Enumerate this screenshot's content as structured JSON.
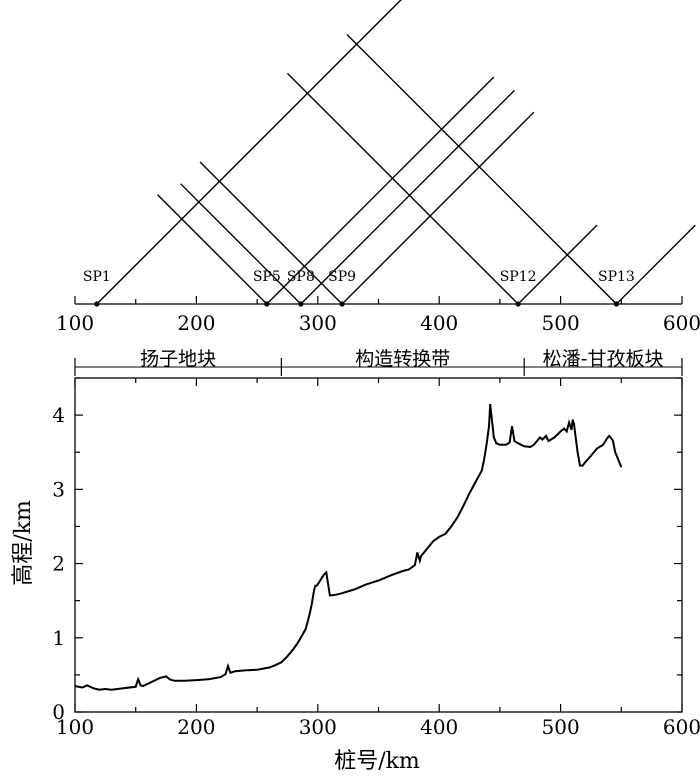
{
  "chart_data": [
    {
      "type": "line",
      "title": "",
      "xlabel": "",
      "ylabel": "",
      "xlim": [
        100,
        600
      ],
      "x_ticks": [
        "100",
        "200",
        "300",
        "400",
        "500",
        "600"
      ],
      "shot_points": [
        {
          "label": "SP1",
          "x": 118
        },
        {
          "label": "SP5",
          "x": 258
        },
        {
          "label": "SP8",
          "x": 286
        },
        {
          "label": "SP9",
          "x": 320
        },
        {
          "label": "SP12",
          "x": 465
        },
        {
          "label": "SP13",
          "x": 546
        }
      ],
      "rays": [
        {
          "from": 118,
          "to": 370
        },
        {
          "from": 258,
          "to": 168
        },
        {
          "from": 258,
          "to": 445
        },
        {
          "from": 286,
          "to": 187
        },
        {
          "from": 286,
          "to": 462
        },
        {
          "from": 320,
          "to": 203
        },
        {
          "from": 320,
          "to": 478
        },
        {
          "from": 465,
          "to": 275
        },
        {
          "from": 546,
          "to": 324
        },
        {
          "from": 546,
          "to": 611
        },
        {
          "from": 465,
          "to": 530
        }
      ]
    },
    {
      "type": "line",
      "title": "",
      "xlabel": "桩号/km",
      "ylabel": "高程/km",
      "xlim": [
        100,
        600
      ],
      "ylim": [
        0,
        4.5
      ],
      "x_ticks": [
        "100",
        "200",
        "300",
        "400",
        "500",
        "600"
      ],
      "y_ticks": [
        "0",
        "1",
        "2",
        "3",
        "4"
      ],
      "regions": [
        {
          "label": "扬子地块",
          "start": 100,
          "end": 270
        },
        {
          "label": "构造转换带",
          "start": 270,
          "end": 470
        },
        {
          "label": "松潘-甘孜板块",
          "start": 470,
          "end": 600
        }
      ],
      "series": [
        {
          "x": [
            100,
            103,
            106,
            110,
            115,
            120,
            125,
            130,
            140,
            150,
            152,
            154,
            156,
            160,
            170,
            175,
            178,
            182,
            190,
            200,
            210,
            220,
            224,
            226,
            228,
            232,
            240,
            250,
            260,
            265,
            270,
            275,
            280,
            283,
            286,
            290,
            293,
            295,
            297,
            298,
            299,
            300,
            305,
            307,
            310,
            315,
            320,
            330,
            340,
            350,
            360,
            370,
            375,
            380,
            382,
            384,
            385,
            390,
            395,
            400,
            405,
            410,
            415,
            420,
            425,
            430,
            435,
            437,
            439,
            441,
            442,
            443,
            445,
            447,
            450,
            455,
            458,
            460,
            462,
            465,
            470,
            475,
            478,
            480,
            483,
            485,
            488,
            490,
            495,
            500,
            503,
            505,
            507,
            509,
            510,
            511,
            512,
            514,
            516,
            518,
            520,
            525,
            530,
            535,
            538,
            540,
            543,
            545,
            547,
            550
          ],
          "y": [
            0.35,
            0.34,
            0.33,
            0.36,
            0.32,
            0.3,
            0.31,
            0.3,
            0.32,
            0.34,
            0.44,
            0.36,
            0.35,
            0.38,
            0.46,
            0.48,
            0.44,
            0.42,
            0.42,
            0.43,
            0.44,
            0.47,
            0.51,
            0.62,
            0.53,
            0.55,
            0.56,
            0.57,
            0.6,
            0.63,
            0.67,
            0.75,
            0.85,
            0.92,
            1.0,
            1.12,
            1.3,
            1.45,
            1.65,
            1.7,
            1.7,
            1.72,
            1.85,
            1.88,
            1.57,
            1.58,
            1.6,
            1.65,
            1.72,
            1.77,
            1.84,
            1.9,
            1.92,
            1.98,
            2.15,
            2.04,
            2.1,
            2.2,
            2.3,
            2.36,
            2.4,
            2.5,
            2.62,
            2.78,
            2.95,
            3.1,
            3.25,
            3.4,
            3.6,
            3.85,
            4.15,
            4.0,
            3.7,
            3.62,
            3.6,
            3.6,
            3.63,
            3.85,
            3.65,
            3.62,
            3.58,
            3.57,
            3.6,
            3.64,
            3.7,
            3.67,
            3.72,
            3.65,
            3.7,
            3.78,
            3.82,
            3.78,
            3.9,
            3.8,
            3.94,
            3.88,
            3.75,
            3.5,
            3.32,
            3.32,
            3.36,
            3.45,
            3.55,
            3.6,
            3.68,
            3.72,
            3.66,
            3.5,
            3.42,
            3.3
          ]
        }
      ]
    }
  ]
}
